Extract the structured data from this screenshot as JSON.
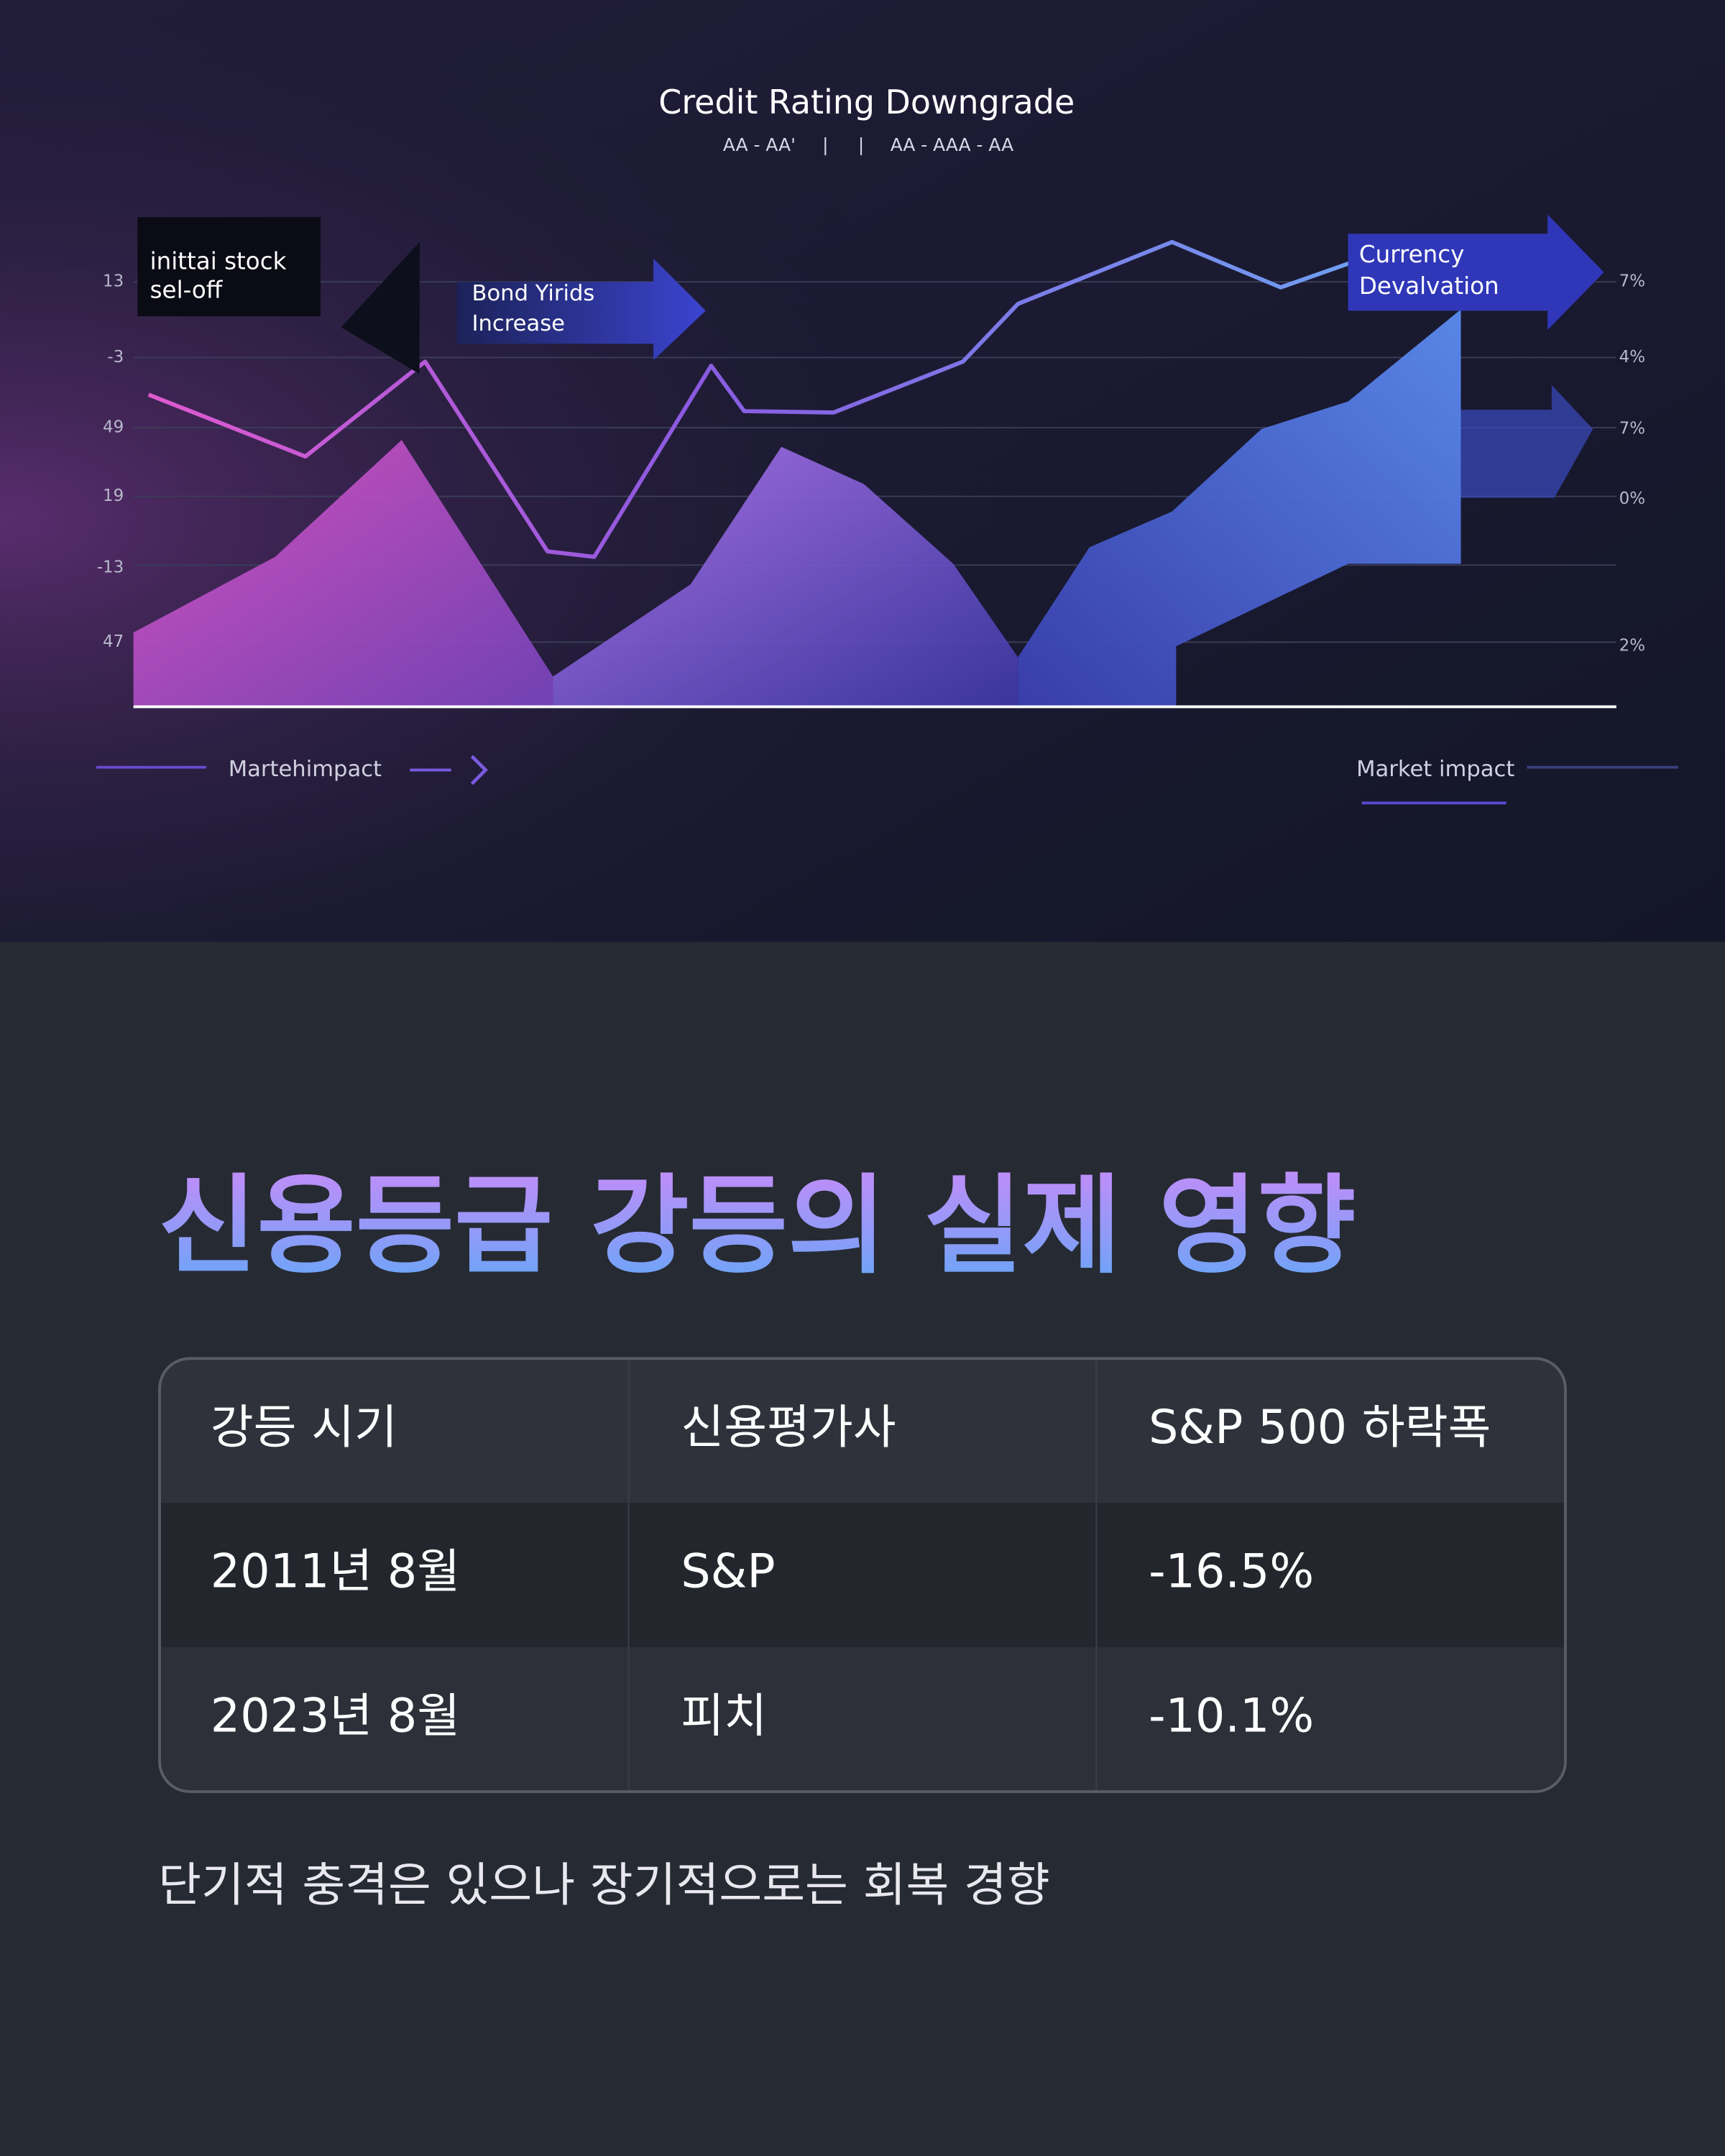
{
  "hero": {
    "title": "Credit Rating Downgrade",
    "subtitle": [
      "AA - AA'",
      "|",
      "|",
      "AA - AAA - AA"
    ],
    "callouts": [
      [
        "inittai stock",
        "sel-off"
      ],
      [
        "Bond Yirids",
        "Increase"
      ],
      [
        "Currency",
        "Devalvation"
      ]
    ],
    "left_axis": [
      "13",
      "-3",
      "49",
      "19",
      "-13",
      "47"
    ],
    "right_axis": [
      "7%",
      "4%",
      "7%",
      "0%",
      "2%"
    ],
    "footer_left": "Martehimpact",
    "footer_right": "Market impact"
  },
  "heading": "신용등급 강등의 실제 영향",
  "table": {
    "header": [
      "강등 시기",
      "신용평가사",
      "S&P 500 하락폭"
    ],
    "rows": [
      [
        "2011년 8월",
        "S&P",
        "-16.5%"
      ],
      [
        "2023년 8월",
        "피치",
        "-10.1%"
      ]
    ]
  },
  "footnote": "단기적 충격은 있으나 장기적으로는 회복 경향"
}
